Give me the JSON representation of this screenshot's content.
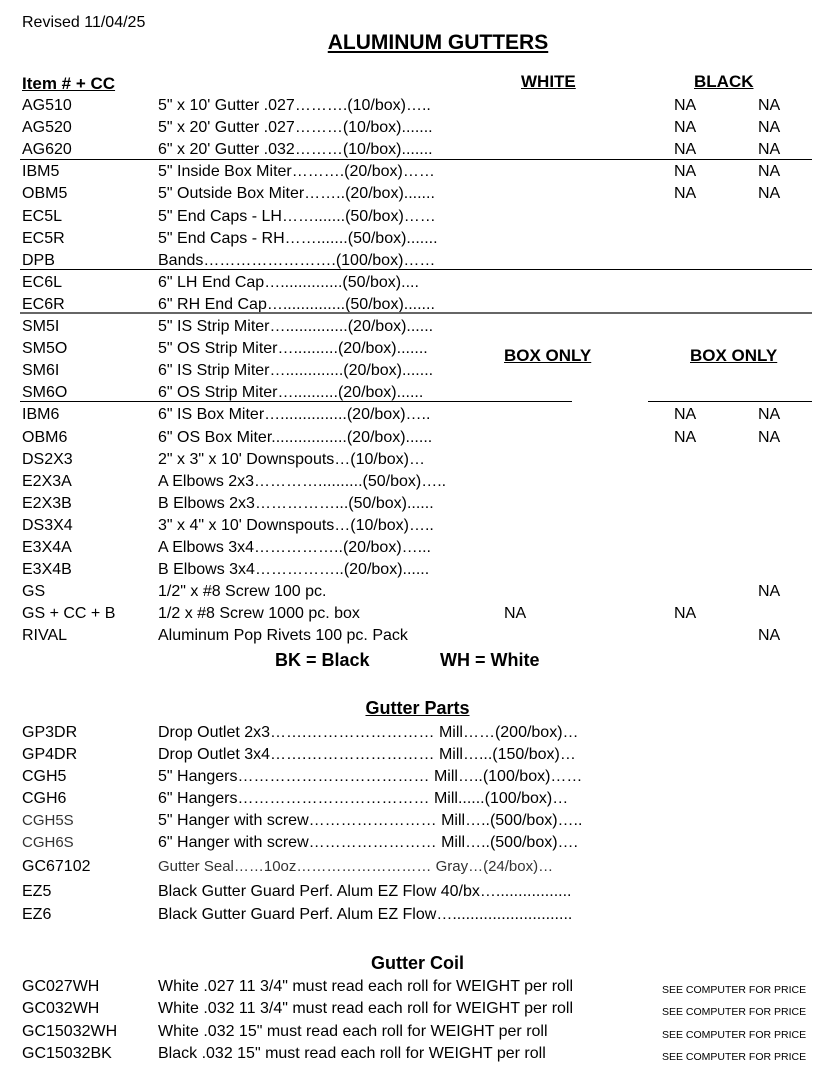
{
  "revised": "Revised 11/04/25",
  "title": "ALUMINUM GUTTERS",
  "headers": {
    "item": "Item # + CC",
    "white": "WHITE",
    "black": "BLACK"
  },
  "box_only": [
    "BOX ONLY",
    "BOX ONLY"
  ],
  "main_rows": [
    {
      "item": "AG510",
      "desc": "5\" x 10' Gutter .027……….(10/box)…..",
      "na": [
        "",
        "NA",
        "NA"
      ]
    },
    {
      "item": "AG520",
      "desc": "5\" x 20' Gutter .027………(10/box).......",
      "na": [
        "",
        "NA",
        "NA"
      ]
    },
    {
      "item": "AG620",
      "desc": "6\" x 20' Gutter .032………(10/box).......",
      "na": [
        "",
        "NA",
        "NA"
      ]
    },
    {
      "item": "IBM5",
      "desc": "5\" Inside Box Miter……….(20/box)……",
      "na": [
        "",
        "NA",
        "NA"
      ]
    },
    {
      "item": "OBM5",
      "desc": "5\" Outside Box Miter……..(20/box).......",
      "na": [
        "",
        "NA",
        "NA"
      ]
    },
    {
      "item": "EC5L",
      "desc": "5\" End Caps - LH…….......(50/box)……",
      "na": [
        "",
        "",
        ""
      ]
    },
    {
      "item": "EC5R",
      "desc": "5\" End Caps - RH…….......(50/box).......",
      "na": [
        "",
        "",
        ""
      ]
    },
    {
      "item": "DPB",
      "desc": "Bands…………………….(100/box)……",
      "na": [
        "",
        "",
        ""
      ]
    },
    {
      "item": "EC6L",
      "desc": "6\" LH End Cap…..............(50/box)....",
      "na": [
        "",
        "",
        ""
      ]
    },
    {
      "item": "EC6R",
      "desc": "6\" RH End Cap…..............(50/box).......",
      "na": [
        "",
        "",
        ""
      ]
    },
    {
      "item": "SM5I",
      "desc": "5\" IS Strip Miter…..............(20/box)......",
      "na": [
        "",
        "",
        ""
      ]
    },
    {
      "item": "SM5O",
      "desc": "5\" OS Strip Miter…..........(20/box).......",
      "na": [
        "",
        "",
        ""
      ]
    },
    {
      "item": "SM6I",
      "desc": "6\" IS Strip Miter….............(20/box).......",
      "na": [
        "",
        "",
        ""
      ]
    },
    {
      "item": "SM6O",
      "desc": "6\" OS Strip Miter…..........(20/box)......",
      "na": [
        "",
        "",
        ""
      ]
    },
    {
      "item": "IBM6",
      "desc": "6\" IS Box Miter…...............(20/box)…..",
      "na": [
        "",
        "NA",
        "NA"
      ]
    },
    {
      "item": "OBM6",
      "desc": "6\" OS Box Miter.................(20/box)......",
      "na": [
        "",
        "NA",
        "NA"
      ]
    },
    {
      "item": "DS2X3",
      "desc": "2\" x 3\" x 10' Downspouts…(10/box)…",
      "na": [
        "",
        "",
        ""
      ]
    },
    {
      "item": "E2X3A",
      "desc": "A Elbows 2x3…………..........(50/box)…..",
      "na": [
        "",
        "",
        ""
      ]
    },
    {
      "item": "E2X3B",
      "desc": "B Elbows 2x3……………...(50/box)......",
      "na": [
        "",
        "",
        ""
      ]
    },
    {
      "item": "DS3X4",
      "desc": "3\" x 4\" x 10' Downspouts…(10/box)…..",
      "na": [
        "",
        "",
        ""
      ]
    },
    {
      "item": "E3X4A",
      "desc": "A Elbows 3x4……………..(20/box)…...",
      "na": [
        "",
        "",
        ""
      ]
    },
    {
      "item": "E3X4B",
      "desc": "B Elbows 3x4……………..(20/box)......",
      "na": [
        "",
        "",
        ""
      ]
    },
    {
      "item": "GS",
      "desc": "1/2\" x #8 Screw 100 pc.",
      "na": [
        "",
        "",
        "NA"
      ]
    },
    {
      "item": "GS + CC + B",
      "desc": "1/2 x #8 Screw 1000 pc. box",
      "na": [
        "NA",
        "NA",
        ""
      ]
    },
    {
      "item": "RIVAL",
      "desc": "Aluminum Pop Rivets 100 pc. Pack",
      "na": [
        "",
        "",
        "NA"
      ]
    }
  ],
  "legend": {
    "bk": "BK = Black",
    "wh": "WH = White"
  },
  "gutter_parts": {
    "title": "Gutter Parts",
    "rows": [
      {
        "item": "GP3DR",
        "desc": "Drop Outlet 2x3…….…………………… Mill……(200/box)…"
      },
      {
        "item": "GP4DR",
        "desc": "Drop Outlet 3x4…….…………………… Mill…...(150/box)…"
      },
      {
        "item": "CGH5",
        "desc": "5\" Hangers……………………………… Mill…..(100/box)……"
      },
      {
        "item": "CGH6",
        "desc": "6\" Hangers……………………………… Mill......(100/box)…"
      },
      {
        "item": "CGH5S",
        "desc": "5\" Hanger with screw…………………… Mill…..(500/box)…..",
        "light": true
      },
      {
        "item": "CGH6S",
        "desc": "6\" Hanger with screw…………………… Mill…..(500/box)….",
        "light": true
      },
      {
        "item": "GC67102",
        "desc": "Gutter Seal……10oz……………………… Gray…(24/box)…"
      },
      {
        "item": "EZ5",
        "desc": "Black Gutter Guard Perf. Alum EZ Flow 40/bx…................."
      },
      {
        "item": "EZ6",
        "desc": "Black Gutter Guard Perf. Alum EZ Flow…..........................."
      }
    ]
  },
  "gutter_coil": {
    "title": "Gutter Coil",
    "rows": [
      {
        "item": "GC027WH",
        "desc": "White .027 11 3/4\" must read each roll for WEIGHT per roll",
        "price": "SEE COMPUTER FOR PRICE"
      },
      {
        "item": "GC032WH",
        "desc": "White .032 11 3/4\" must read each roll for WEIGHT per roll",
        "price": "SEE COMPUTER FOR PRICE"
      },
      {
        "item": "GC15032WH",
        "desc": "White .032 15\" must read each roll for WEIGHT per roll",
        "price": "SEE COMPUTER FOR PRICE"
      },
      {
        "item": "GC15032BK",
        "desc": "Black .032 15\" must read each roll for WEIGHT per roll",
        "price": "SEE COMPUTER FOR PRICE"
      }
    ]
  }
}
